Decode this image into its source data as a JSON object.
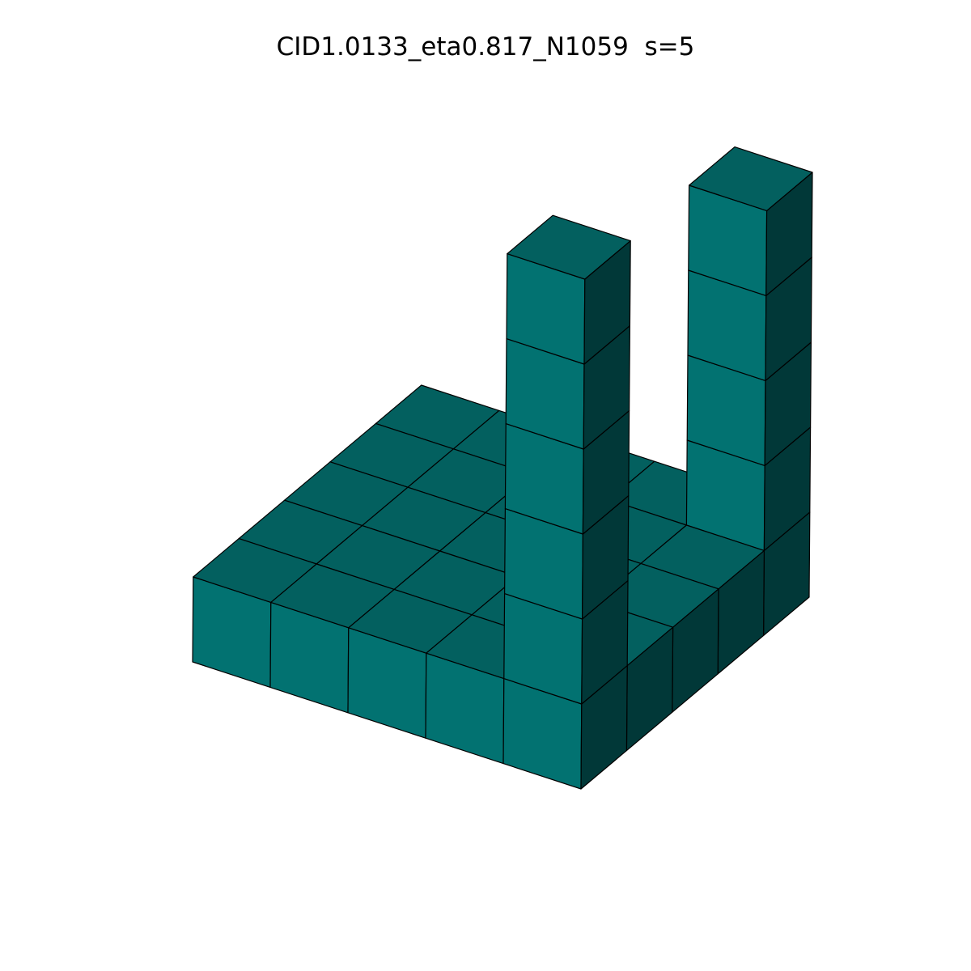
{
  "figure": {
    "title": "CID1.0133_eta0.817_N1059  s=5"
  },
  "voxel_grid": {
    "size": 5,
    "base_layer_filled": true,
    "columns": [
      {
        "row": 4,
        "col": 4,
        "height": 5
      },
      {
        "row": 0,
        "col": 4,
        "height": 6
      }
    ]
  },
  "colors": {
    "top_face": "#03605F",
    "front_face": "#027271",
    "side_face": "#013838",
    "edge": "#000000",
    "background": "#FFFFFF"
  }
}
